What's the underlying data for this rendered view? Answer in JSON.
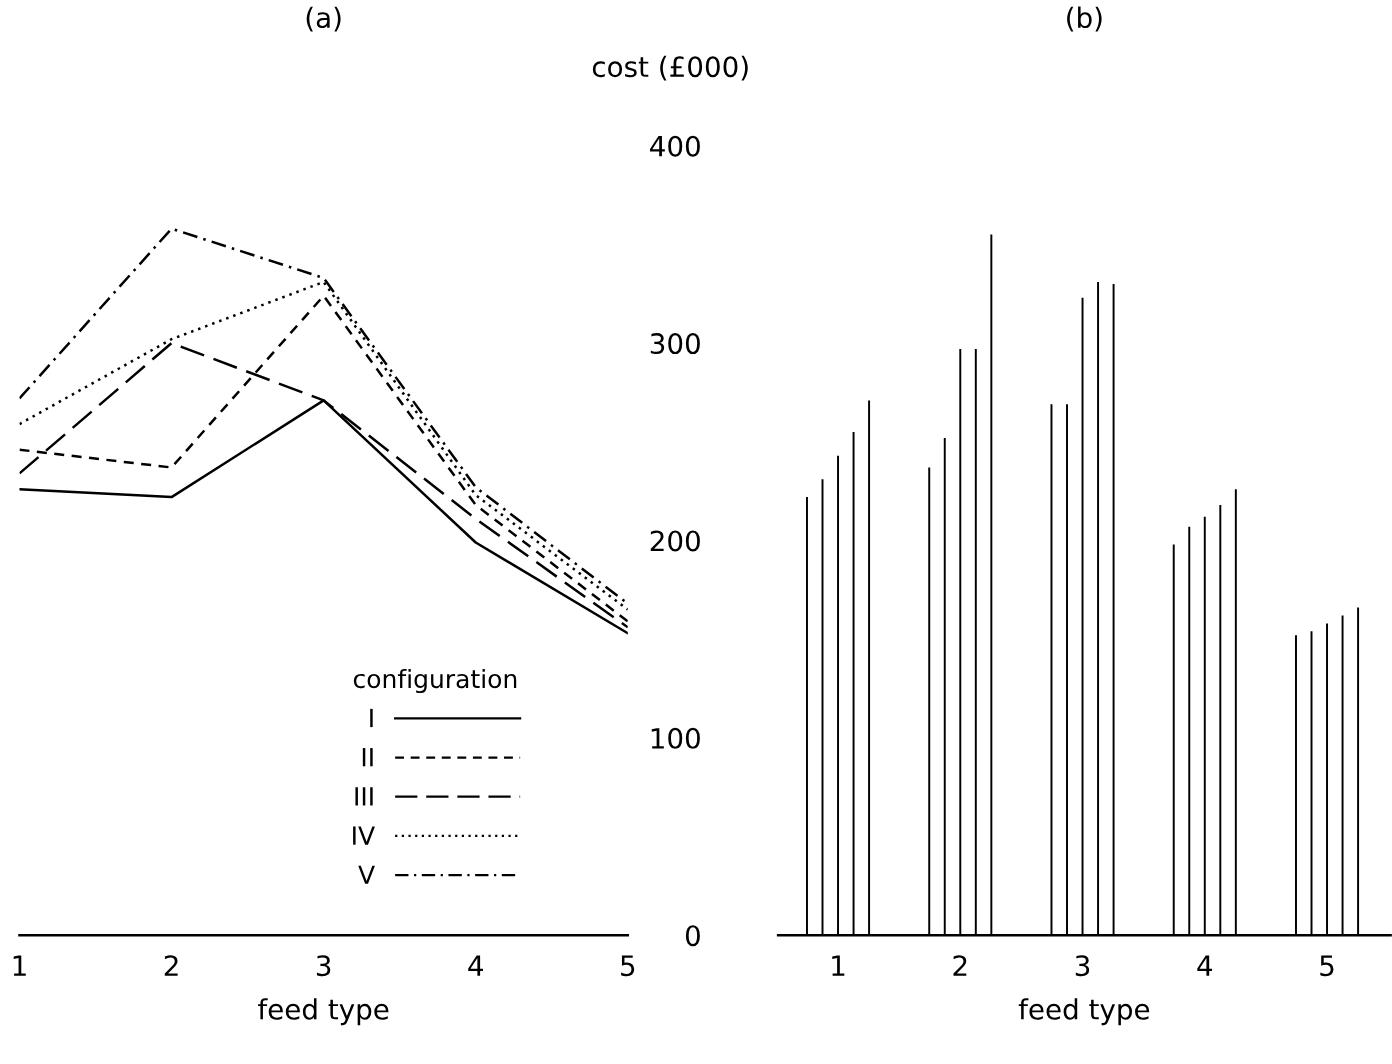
{
  "chart_data": [
    {
      "type": "line",
      "title": "(a)",
      "xlabel": "feed type",
      "legend_title": "configuration",
      "legend": "bottom right",
      "x": [
        1,
        2,
        3,
        4,
        5
      ],
      "xlim": [
        1,
        5
      ],
      "xticks": [
        1,
        2,
        3,
        4,
        5
      ],
      "ylim": [
        0,
        400
      ],
      "tick_labels": "x",
      "grid": false,
      "series": [
        {
          "name": "I",
          "color": "#000000",
          "line_style": "solid",
          "values": [
            226,
            222,
            271,
            199,
            153
          ]
        },
        {
          "name": "II",
          "color": "#000000",
          "line_style": "dashed",
          "values": [
            246,
            237,
            324,
            218,
            159
          ]
        },
        {
          "name": "III",
          "color": "#000000",
          "line_style": "longdash",
          "values": [
            234,
            300,
            271,
            211,
            156
          ]
        },
        {
          "name": "IV",
          "color": "#000000",
          "line_style": "dotted",
          "values": [
            259,
            302,
            331,
            223,
            165
          ]
        },
        {
          "name": "V",
          "color": "#000000",
          "line_style": "dashdot",
          "values": [
            272,
            358,
            333,
            227,
            168
          ]
        }
      ]
    },
    {
      "type": "bar",
      "title": "(b)",
      "xlabel": "feed type",
      "ylabel": "cost (£000)",
      "categories": [
        "1",
        "2",
        "3",
        "4",
        "5"
      ],
      "ylim": [
        0,
        400
      ],
      "yticks": [
        0,
        100,
        200,
        300,
        400
      ],
      "grid": false,
      "series": [
        {
          "color": "#000000",
          "values": [
            222,
            237,
            269,
            198,
            152
          ]
        },
        {
          "color": "#000000",
          "values": [
            231,
            252,
            269,
            207,
            154
          ]
        },
        {
          "color": "#000000",
          "values": [
            243,
            297,
            323,
            212,
            158
          ]
        },
        {
          "color": "#000000",
          "values": [
            255,
            297,
            331,
            218,
            162
          ]
        },
        {
          "color": "#000000",
          "values": [
            271,
            355,
            330,
            226,
            166
          ]
        }
      ]
    }
  ]
}
